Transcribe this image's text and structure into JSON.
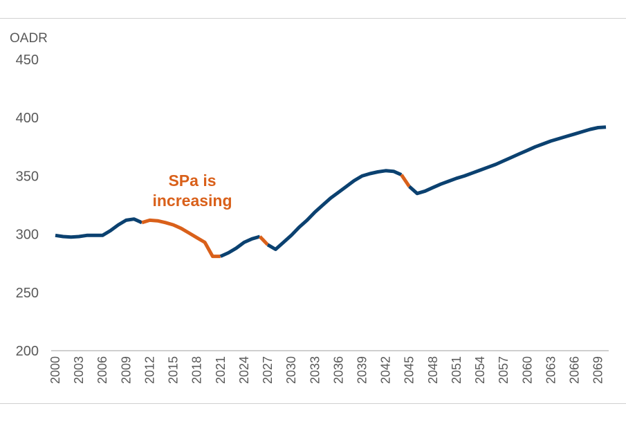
{
  "colors": {
    "default_series": "#0b4170",
    "highlight_series": "#d9601a",
    "axis_text": "#595959",
    "axis_line": "#bfbfbf"
  },
  "chart_data": {
    "type": "line",
    "title": "",
    "xlabel": "",
    "ylabel": "OADR",
    "ylim": [
      200,
      450
    ],
    "yticks": [
      200,
      250,
      300,
      350,
      400,
      450
    ],
    "xticks": [
      "2000",
      "2003",
      "2006",
      "2009",
      "2012",
      "2015",
      "2018",
      "2021",
      "2024",
      "2027",
      "2030",
      "2033",
      "2036",
      "2039",
      "2042",
      "2045",
      "2048",
      "2051",
      "2054",
      "2057",
      "2060",
      "2063",
      "2066",
      "2069"
    ],
    "xlim": [
      2000,
      2070
    ],
    "grid": false,
    "legend": "none",
    "annotations": [
      {
        "lines": [
          "SPa is",
          "increasing"
        ],
        "color": "#d9601a"
      }
    ],
    "series": [
      {
        "x": [
          2000,
          2001,
          2002,
          2003,
          2004,
          2005,
          2006,
          2007,
          2008,
          2009,
          2010,
          2011,
          2012,
          2013,
          2014,
          2015,
          2016,
          2017,
          2018,
          2019,
          2020,
          2021,
          2022,
          2023,
          2024,
          2025,
          2026,
          2027,
          2028,
          2029,
          2030,
          2031,
          2032,
          2033,
          2034,
          2035,
          2036,
          2037,
          2038,
          2039,
          2040,
          2041,
          2042,
          2043,
          2044,
          2045,
          2046,
          2047,
          2048,
          2049,
          2050,
          2051,
          2052,
          2053,
          2054,
          2055,
          2056,
          2057,
          2058,
          2059,
          2060,
          2061,
          2062,
          2063,
          2064,
          2065,
          2066,
          2067,
          2068,
          2069,
          2070
        ],
        "y": [
          299,
          298,
          297.5,
          298,
          299,
          299,
          299,
          303,
          308,
          312,
          313,
          310,
          312,
          311.5,
          310,
          308,
          305,
          301,
          297,
          293,
          281,
          281,
          284,
          288,
          293,
          296,
          298,
          291,
          287,
          293,
          299,
          306,
          312,
          319,
          325,
          331,
          336,
          341,
          346,
          350,
          352,
          353.5,
          354.5,
          354,
          351,
          341,
          335,
          337,
          340,
          343,
          345.5,
          348,
          350,
          352.5,
          355,
          357.5,
          360,
          363,
          366,
          369,
          372,
          375,
          377.5,
          380,
          382,
          384,
          386,
          388,
          390,
          391.5,
          392
        ],
        "segment_colors": [
          {
            "from": 2000,
            "to": 2011,
            "color": "#0b4170"
          },
          {
            "from": 2011,
            "to": 2021,
            "color": "#d9601a"
          },
          {
            "from": 2021,
            "to": 2026,
            "color": "#0b4170"
          },
          {
            "from": 2026,
            "to": 2027,
            "color": "#d9601a"
          },
          {
            "from": 2027,
            "to": 2044,
            "color": "#0b4170"
          },
          {
            "from": 2044,
            "to": 2045,
            "color": "#d9601a"
          },
          {
            "from": 2045,
            "to": 2070,
            "color": "#0b4170"
          }
        ]
      }
    ]
  }
}
